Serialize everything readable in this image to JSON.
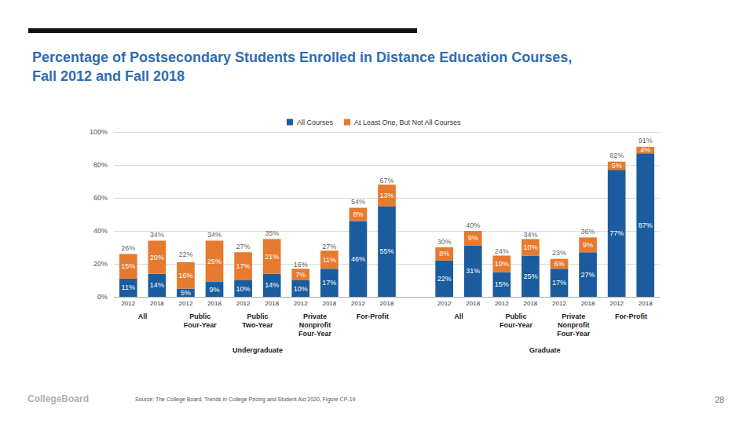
{
  "chart_data": {
    "type": "bar",
    "title": "Percentage of Postsecondary Students Enrolled in Distance Education Courses,\nFall 2012 and Fall 2018",
    "categories": [
      "2012",
      "2018",
      "2012",
      "2018",
      "2012",
      "2018",
      "2012",
      "2018",
      "2012",
      "2018",
      null,
      "2012",
      "2018",
      "2012",
      "2018",
      "2012",
      "2018",
      "2012",
      "2018"
    ],
    "groups": [
      {
        "label": "Undergraduate",
        "subgroups": [
          "All",
          "Public\nFour-Year",
          "Public\nTwo-Year",
          "Private\nNonprofit\nFour-Year",
          "For-Profit"
        ]
      },
      {
        "label": "Graduate",
        "subgroups": [
          "All",
          "Public\nFour-Year",
          "Private\nNonprofit\nFour-Year",
          "For-Profit"
        ]
      }
    ],
    "series": [
      {
        "name": "All Courses",
        "color": "#1a5c9e",
        "values": [
          11,
          14,
          5,
          9,
          10,
          14,
          10,
          17,
          46,
          55,
          null,
          22,
          31,
          15,
          25,
          17,
          27,
          77,
          87
        ],
        "value_labels": [
          "11%",
          "14%",
          "5%",
          "9%",
          "10%",
          "14%",
          "10%",
          "17%",
          "46%",
          "55%",
          null,
          "22%",
          "31%",
          "15%",
          "25%",
          "17%",
          "27%",
          "77%",
          "87%"
        ]
      },
      {
        "name": "At Least One, But Not All Courses",
        "color": "#e67a2e",
        "values": [
          15,
          20,
          16,
          25,
          17,
          21,
          7,
          11,
          8,
          13,
          null,
          8,
          9,
          10,
          10,
          6,
          9,
          5,
          4
        ],
        "value_labels": [
          "15%",
          "20%",
          "16%",
          "25%",
          "17%",
          "21%",
          "7%",
          "11%",
          "8%",
          "13%",
          null,
          "8%",
          "9%",
          "10%",
          "10%",
          "6%",
          "9%",
          "5%",
          "4%"
        ]
      }
    ],
    "totals": {
      "values": [
        26,
        34,
        22,
        34,
        27,
        35,
        16,
        27,
        54,
        67,
        null,
        30,
        40,
        24,
        34,
        23,
        36,
        82,
        91
      ],
      "value_labels": [
        "26%",
        "34%",
        "22%",
        "34%",
        "27%",
        "35%",
        "16%",
        "27%",
        "54%",
        "67%",
        null,
        "30%",
        "40%",
        "24%",
        "34%",
        "23%",
        "36%",
        "82%",
        "91%"
      ]
    },
    "ylim": [
      0,
      100
    ],
    "yticks": [
      {
        "value": 0,
        "label": "0%"
      },
      {
        "value": 20,
        "label": "20%"
      },
      {
        "value": 40,
        "label": "40%"
      },
      {
        "value": 60,
        "label": "60%"
      },
      {
        "value": 80,
        "label": "80%"
      },
      {
        "value": 100,
        "label": "100%"
      }
    ],
    "stacked": true,
    "data_labels": true,
    "grid": true,
    "legend": "top"
  },
  "page": {
    "logo": "CollegeBoard",
    "source": "Source: The College Board, Trends in College Pricing and Student Aid 2020, Figure CP-19",
    "page_number": 28
  }
}
